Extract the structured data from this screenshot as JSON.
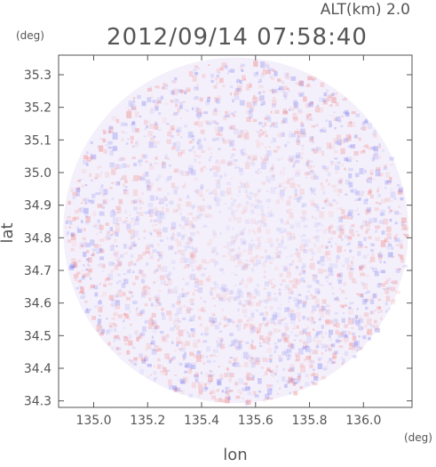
{
  "header": {
    "altitude_label": "ALT(km)  2.0",
    "timestamp": "2012/09/14 07:58:40"
  },
  "axes": {
    "y_unit": "(deg)",
    "x_unit": "(deg)",
    "xlabel": "lon",
    "ylabel": "lat"
  },
  "colors": {
    "frame": "#555555",
    "positive": "#f08080",
    "negative": "#8080f0",
    "neutral": "#f4f0fb"
  },
  "chart_data": {
    "type": "heatmap",
    "description_shape": "circular radar scan region",
    "xlim": [
      134.87,
      136.18
    ],
    "ylim": [
      34.28,
      35.36
    ],
    "x_ticks": [
      135.0,
      135.2,
      135.4,
      135.6,
      135.8,
      136.0
    ],
    "x_tick_labels": [
      "135.0",
      "135.2",
      "135.4",
      "135.6",
      "135.8",
      "136.0"
    ],
    "y_ticks": [
      34.3,
      34.4,
      34.5,
      34.6,
      34.7,
      34.8,
      34.9,
      35.0,
      35.1,
      35.2,
      35.3
    ],
    "y_tick_labels": [
      "34.3",
      "34.4",
      "34.5",
      "34.6",
      "34.7",
      "34.8",
      "34.9",
      "35.0",
      "35.1",
      "35.2",
      "35.3"
    ],
    "center": {
      "lon": 135.527,
      "lat": 34.823
    },
    "radius_lat_deg": 0.53,
    "grid": false,
    "legend": "none"
  }
}
